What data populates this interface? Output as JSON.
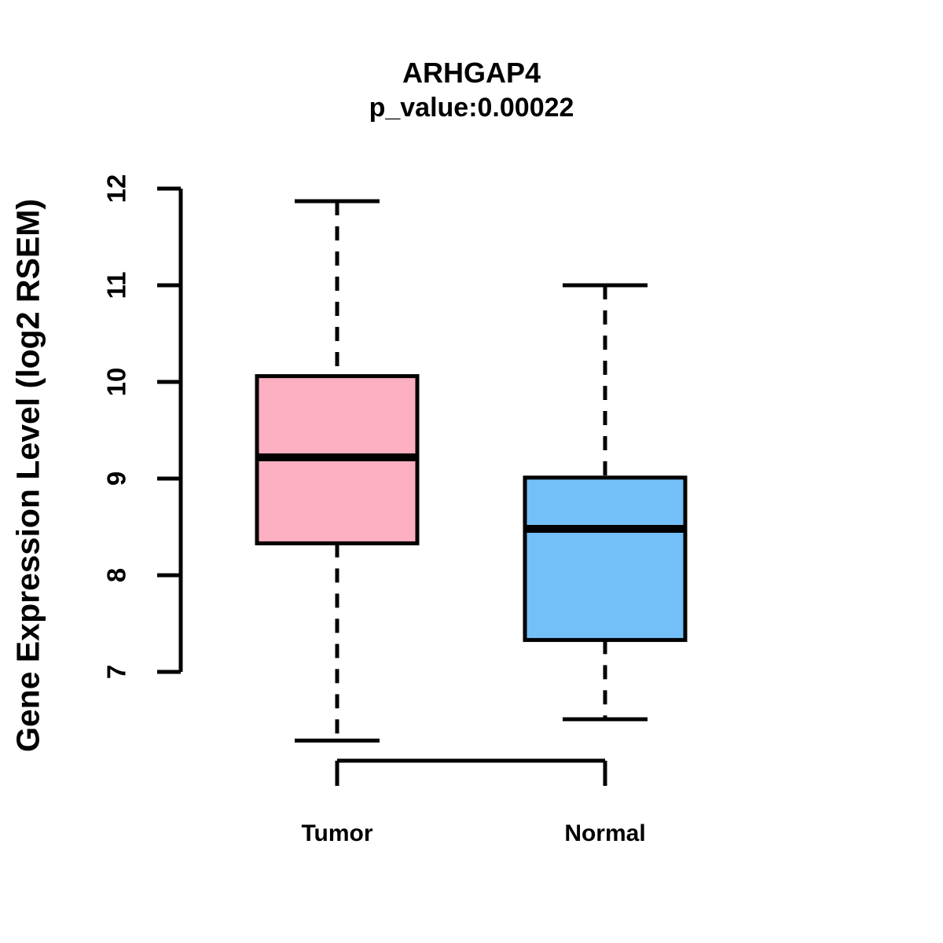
{
  "title": "ARHGAP4",
  "subtitle": "p_value:0.00022",
  "ylabel": "Gene Expression Level (log2 RSEM)",
  "chart_data": {
    "type": "boxplot",
    "title": "ARHGAP4",
    "subtitle": "p_value:0.00022",
    "ylabel": "Gene Expression Level (log2 RSEM)",
    "categories": [
      "Tumor",
      "Normal"
    ],
    "series": [
      {
        "name": "Tumor",
        "color": "#FCAFC1",
        "lower_whisker": 6.29,
        "q1": 8.33,
        "median": 9.22,
        "q3": 10.06,
        "upper_whisker": 11.87
      },
      {
        "name": "Normal",
        "color": "#74BFF7",
        "lower_whisker": 6.51,
        "q1": 7.33,
        "median": 8.48,
        "q3": 9.01,
        "upper_whisker": 11.0
      }
    ],
    "y_ticks": [
      7,
      8,
      9,
      10,
      11,
      12
    ],
    "ylim": [
      6.1,
      12.1
    ],
    "grid": false,
    "legend": "none",
    "box_border_color": "#000000",
    "median_color": "#000000",
    "whisker_style": "dashed",
    "background_color": "#FFFFFF"
  }
}
